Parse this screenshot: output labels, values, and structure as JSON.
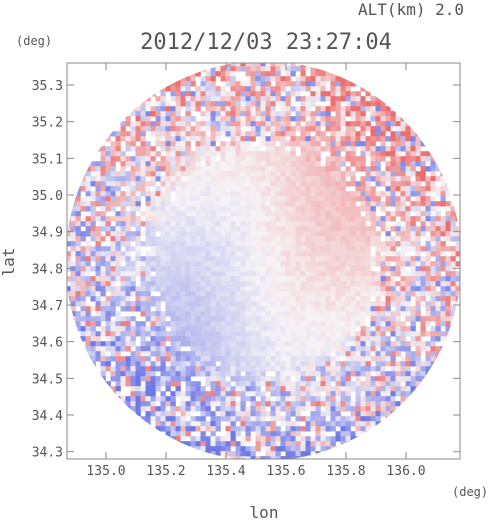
{
  "header": {
    "altitude_label": "ALT(km) 2.0",
    "timestamp": "2012/12/03 23:27:04"
  },
  "chart_data": {
    "type": "heatmap",
    "title": "2012/12/03 23:27:04",
    "subtitle": "ALT(km) 2.0",
    "xlabel": "lon",
    "ylabel": "lat",
    "x_unit": "(deg)",
    "y_unit": "(deg)",
    "xlim": [
      134.87,
      136.18
    ],
    "ylim": [
      34.28,
      35.36
    ],
    "x_ticks": [
      135.0,
      135.2,
      135.4,
      135.6,
      135.8,
      136.0
    ],
    "x_tick_labels": [
      "135.0",
      "135.2",
      "135.4",
      "135.6",
      "135.8",
      "136.0"
    ],
    "y_ticks": [
      34.3,
      34.4,
      34.5,
      34.6,
      34.7,
      34.8,
      34.9,
      35.0,
      35.1,
      35.2,
      35.3
    ],
    "y_tick_labels": [
      "34.3",
      "34.4",
      "34.5",
      "34.6",
      "34.7",
      "34.8",
      "34.9",
      "35.0",
      "35.1",
      "35.2",
      "35.3"
    ],
    "radar_center": {
      "lon": 135.525,
      "lat": 34.82
    },
    "radar_range_lon_deg": 0.66,
    "radar_range_lat_deg": 0.545,
    "colormap": {
      "negative": "#6e78e6",
      "neutral": "#f6f3f6",
      "positive": "#ec6e6e"
    },
    "grid": false,
    "legend": "none"
  }
}
